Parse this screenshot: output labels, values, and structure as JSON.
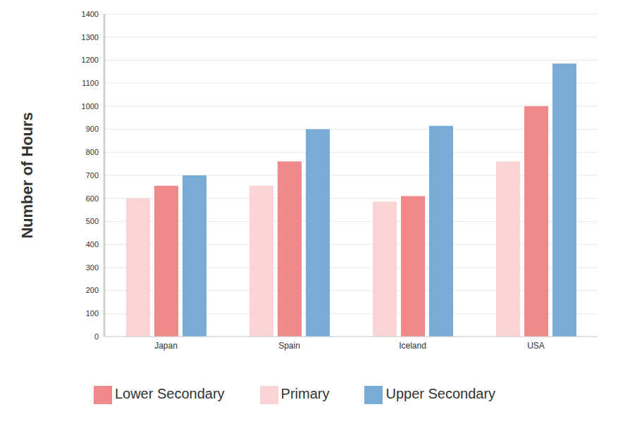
{
  "chart_data": {
    "type": "bar",
    "categories": [
      "Japan",
      "Spain",
      "Iceland",
      "USA"
    ],
    "series": [
      {
        "name": "Primary",
        "color": "#fad4d4",
        "values": [
          600,
          655,
          585,
          760
        ]
      },
      {
        "name": "Lower Secondary",
        "color": "#f08a8a",
        "values": [
          655,
          760,
          610,
          1000
        ]
      },
      {
        "name": "Upper Secondary",
        "color": "#7aaad6",
        "values": [
          700,
          900,
          915,
          1185
        ]
      }
    ],
    "ylabel": "Number of Hours",
    "ylim": [
      0,
      1400
    ],
    "yticks": [
      0,
      100,
      200,
      300,
      400,
      500,
      600,
      700,
      800,
      900,
      1000,
      1100,
      1200,
      1300,
      1400
    ],
    "grid": true,
    "legend": "bottom"
  }
}
